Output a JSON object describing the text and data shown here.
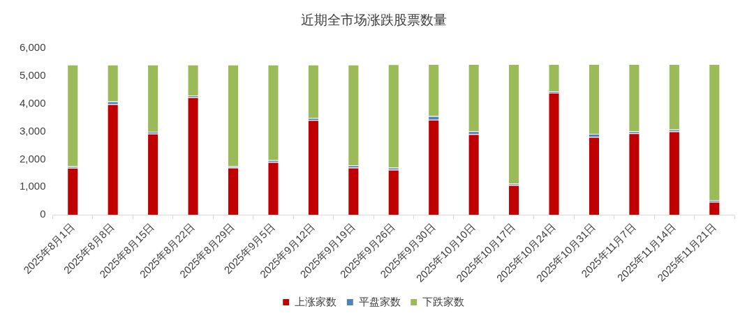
{
  "chart_data": {
    "type": "bar",
    "title": "近期全市场涨跌股票数量",
    "stacked": true,
    "categories": [
      "2025年8月1日",
      "2025年8月8日",
      "2025年8月15日",
      "2025年8月22日",
      "2025年8月29日",
      "2025年9月5日",
      "2025年9月12日",
      "2025年9月19日",
      "2025年9月26日",
      "2025年9月30日",
      "2025年10月10日",
      "2025年10月17日",
      "2025年10月24日",
      "2025年10月31日",
      "2025年11月7日",
      "2025年11月14日",
      "2025年11月21日"
    ],
    "series": [
      {
        "name": "上涨家数",
        "color": "#c00000",
        "values": [
          1690,
          3980,
          2920,
          4230,
          1700,
          1900,
          3410,
          1700,
          1620,
          3420,
          2900,
          1070,
          4390,
          2800,
          2930,
          3000,
          470
        ]
      },
      {
        "name": "平盘家数",
        "color": "#4f81bd",
        "values": [
          60,
          100,
          70,
          60,
          50,
          70,
          70,
          80,
          80,
          130,
          110,
          60,
          50,
          110,
          70,
          70,
          60
        ]
      },
      {
        "name": "下跌家数",
        "color": "#9bbb59",
        "values": [
          3650,
          1320,
          2410,
          1110,
          3650,
          3430,
          1920,
          3620,
          3710,
          1870,
          2410,
          4290,
          980,
          2510,
          2420,
          2350,
          4890
        ]
      }
    ],
    "ylim": [
      0,
      6000
    ],
    "yticks": [
      {
        "value": 0,
        "label": "0"
      },
      {
        "value": 1000,
        "label": "1,000"
      },
      {
        "value": 2000,
        "label": "2,000"
      },
      {
        "value": 3000,
        "label": "3,000"
      },
      {
        "value": 4000,
        "label": "4,000"
      },
      {
        "value": 5000,
        "label": "5,000"
      },
      {
        "value": 6000,
        "label": "6,000"
      }
    ],
    "grid": false,
    "legend": "bottom"
  }
}
